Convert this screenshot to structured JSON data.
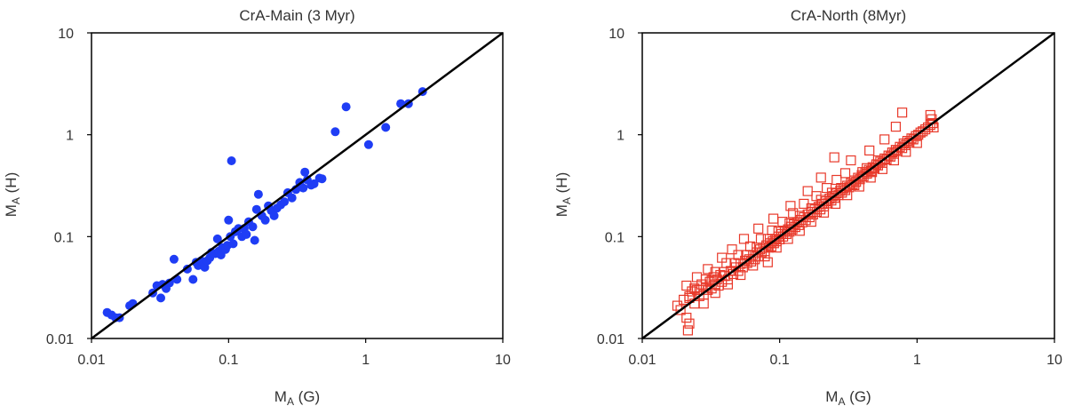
{
  "chart_data": [
    {
      "type": "scatter",
      "title": "CrA-Main (3 Myr)",
      "xlabel": {
        "main": "M",
        "sub": "A",
        "suffix": " (G)"
      },
      "ylabel": {
        "main": "M",
        "sub": "A",
        "suffix": " (H)"
      },
      "xscale": "log",
      "yscale": "log",
      "xlim": [
        0.01,
        10
      ],
      "ylim": [
        0.01,
        10
      ],
      "xticks": [
        0.01,
        0.1,
        1,
        10
      ],
      "xtick_labels": [
        "0.01",
        "0.1",
        "1",
        "10"
      ],
      "yticks": [
        0.01,
        0.1,
        1,
        10
      ],
      "ytick_labels": [
        "0.01",
        "0.1",
        "1",
        "10"
      ],
      "reference_line": "y = x",
      "marker": "filled-circle",
      "color": "#1f3df5",
      "points": [
        [
          0.013,
          0.018
        ],
        [
          0.014,
          0.017
        ],
        [
          0.015,
          0.016
        ],
        [
          0.016,
          0.016
        ],
        [
          0.019,
          0.021
        ],
        [
          0.02,
          0.022
        ],
        [
          0.028,
          0.028
        ],
        [
          0.03,
          0.033
        ],
        [
          0.032,
          0.025
        ],
        [
          0.033,
          0.034
        ],
        [
          0.035,
          0.031
        ],
        [
          0.037,
          0.035
        ],
        [
          0.04,
          0.06
        ],
        [
          0.042,
          0.038
        ],
        [
          0.05,
          0.048
        ],
        [
          0.055,
          0.038
        ],
        [
          0.058,
          0.056
        ],
        [
          0.06,
          0.052
        ],
        [
          0.063,
          0.058
        ],
        [
          0.067,
          0.05
        ],
        [
          0.07,
          0.058
        ],
        [
          0.073,
          0.062
        ],
        [
          0.075,
          0.07
        ],
        [
          0.08,
          0.068
        ],
        [
          0.083,
          0.095
        ],
        [
          0.085,
          0.072
        ],
        [
          0.088,
          0.066
        ],
        [
          0.09,
          0.078
        ],
        [
          0.095,
          0.075
        ],
        [
          0.098,
          0.082
        ],
        [
          0.1,
          0.145
        ],
        [
          0.103,
          0.1
        ],
        [
          0.105,
          0.555
        ],
        [
          0.108,
          0.085
        ],
        [
          0.112,
          0.112
        ],
        [
          0.118,
          0.12
        ],
        [
          0.125,
          0.1
        ],
        [
          0.13,
          0.12
        ],
        [
          0.135,
          0.105
        ],
        [
          0.14,
          0.14
        ],
        [
          0.15,
          0.125
        ],
        [
          0.155,
          0.092
        ],
        [
          0.16,
          0.185
        ],
        [
          0.165,
          0.26
        ],
        [
          0.175,
          0.16
        ],
        [
          0.185,
          0.145
        ],
        [
          0.195,
          0.2
        ],
        [
          0.205,
          0.18
        ],
        [
          0.215,
          0.16
        ],
        [
          0.225,
          0.19
        ],
        [
          0.24,
          0.205
        ],
        [
          0.255,
          0.22
        ],
        [
          0.27,
          0.27
        ],
        [
          0.29,
          0.24
        ],
        [
          0.31,
          0.29
        ],
        [
          0.33,
          0.34
        ],
        [
          0.35,
          0.3
        ],
        [
          0.36,
          0.43
        ],
        [
          0.375,
          0.36
        ],
        [
          0.4,
          0.32
        ],
        [
          0.42,
          0.33
        ],
        [
          0.46,
          0.375
        ],
        [
          0.48,
          0.37
        ],
        [
          0.6,
          1.07
        ],
        [
          0.72,
          1.88
        ],
        [
          1.05,
          0.8
        ],
        [
          1.4,
          1.18
        ],
        [
          1.8,
          2.02
        ],
        [
          2.05,
          2.02
        ],
        [
          2.6,
          2.65
        ]
      ]
    },
    {
      "type": "scatter",
      "title": "CrA-North (8Myr)",
      "xlabel": {
        "main": "M",
        "sub": "A",
        "suffix": " (G)"
      },
      "ylabel": {
        "main": "M",
        "sub": "A",
        "suffix": " (H)"
      },
      "xscale": "log",
      "yscale": "log",
      "xlim": [
        0.01,
        10
      ],
      "ylim": [
        0.01,
        10
      ],
      "xticks": [
        0.01,
        0.1,
        1,
        10
      ],
      "xtick_labels": [
        "0.01",
        "0.1",
        "1",
        "10"
      ],
      "yticks": [
        0.01,
        0.1,
        1,
        10
      ],
      "ytick_labels": [
        "0.01",
        "0.1",
        "1",
        "10"
      ],
      "reference_line": "y = x",
      "marker": "open-square",
      "color": "#e8392a",
      "points": [
        [
          0.018,
          0.021
        ],
        [
          0.019,
          0.019
        ],
        [
          0.02,
          0.024
        ],
        [
          0.021,
          0.016
        ],
        [
          0.0215,
          0.012
        ],
        [
          0.022,
          0.014
        ],
        [
          0.022,
          0.026
        ],
        [
          0.023,
          0.029
        ],
        [
          0.024,
          0.022
        ],
        [
          0.025,
          0.03
        ],
        [
          0.026,
          0.026
        ],
        [
          0.027,
          0.034
        ],
        [
          0.028,
          0.027
        ],
        [
          0.029,
          0.032
        ],
        [
          0.03,
          0.03
        ],
        [
          0.031,
          0.036
        ],
        [
          0.032,
          0.031
        ],
        [
          0.033,
          0.04
        ],
        [
          0.034,
          0.034
        ],
        [
          0.035,
          0.038
        ],
        [
          0.036,
          0.033
        ],
        [
          0.037,
          0.042
        ],
        [
          0.038,
          0.036
        ],
        [
          0.04,
          0.041
        ],
        [
          0.042,
          0.038
        ],
        [
          0.044,
          0.046
        ],
        [
          0.046,
          0.043
        ],
        [
          0.048,
          0.05
        ],
        [
          0.05,
          0.046
        ],
        [
          0.052,
          0.054
        ],
        [
          0.054,
          0.05
        ],
        [
          0.056,
          0.058
        ],
        [
          0.058,
          0.055
        ],
        [
          0.06,
          0.06
        ],
        [
          0.062,
          0.057
        ],
        [
          0.064,
          0.066
        ],
        [
          0.066,
          0.06
        ],
        [
          0.068,
          0.07
        ],
        [
          0.07,
          0.064
        ],
        [
          0.072,
          0.075
        ],
        [
          0.074,
          0.07
        ],
        [
          0.076,
          0.078
        ],
        [
          0.078,
          0.072
        ],
        [
          0.08,
          0.082
        ],
        [
          0.082,
          0.056
        ],
        [
          0.083,
          0.078
        ],
        [
          0.085,
          0.086
        ],
        [
          0.087,
          0.08
        ],
        [
          0.089,
          0.09
        ],
        [
          0.091,
          0.086
        ],
        [
          0.093,
          0.095
        ],
        [
          0.095,
          0.09
        ],
        [
          0.098,
          0.1
        ],
        [
          0.1,
          0.094
        ],
        [
          0.103,
          0.106
        ],
        [
          0.106,
          0.1
        ],
        [
          0.109,
          0.112
        ],
        [
          0.112,
          0.106
        ],
        [
          0.115,
          0.118
        ],
        [
          0.118,
          0.112
        ],
        [
          0.121,
          0.125
        ],
        [
          0.124,
          0.118
        ],
        [
          0.127,
          0.132
        ],
        [
          0.13,
          0.124
        ],
        [
          0.134,
          0.138
        ],
        [
          0.138,
          0.13
        ],
        [
          0.142,
          0.146
        ],
        [
          0.146,
          0.138
        ],
        [
          0.15,
          0.155
        ],
        [
          0.155,
          0.145
        ],
        [
          0.16,
          0.165
        ],
        [
          0.165,
          0.155
        ],
        [
          0.17,
          0.175
        ],
        [
          0.175,
          0.165
        ],
        [
          0.18,
          0.185
        ],
        [
          0.186,
          0.175
        ],
        [
          0.192,
          0.196
        ],
        [
          0.198,
          0.185
        ],
        [
          0.204,
          0.21
        ],
        [
          0.21,
          0.198
        ],
        [
          0.217,
          0.222
        ],
        [
          0.224,
          0.212
        ],
        [
          0.231,
          0.236
        ],
        [
          0.238,
          0.226
        ],
        [
          0.245,
          0.25
        ],
        [
          0.252,
          0.24
        ],
        [
          0.26,
          0.266
        ],
        [
          0.268,
          0.255
        ],
        [
          0.276,
          0.282
        ],
        [
          0.284,
          0.27
        ],
        [
          0.292,
          0.298
        ],
        [
          0.3,
          0.286
        ],
        [
          0.31,
          0.316
        ],
        [
          0.32,
          0.305
        ],
        [
          0.33,
          0.336
        ],
        [
          0.34,
          0.325
        ],
        [
          0.35,
          0.356
        ],
        [
          0.36,
          0.345
        ],
        [
          0.372,
          0.378
        ],
        [
          0.384,
          0.366
        ],
        [
          0.396,
          0.402
        ],
        [
          0.408,
          0.39
        ],
        [
          0.42,
          0.428
        ],
        [
          0.432,
          0.415
        ],
        [
          0.446,
          0.452
        ],
        [
          0.46,
          0.44
        ],
        [
          0.475,
          0.48
        ],
        [
          0.49,
          0.47
        ],
        [
          0.505,
          0.512
        ],
        [
          0.52,
          0.5
        ],
        [
          0.54,
          0.545
        ],
        [
          0.56,
          0.53
        ],
        [
          0.58,
          0.585
        ],
        [
          0.6,
          0.57
        ],
        [
          0.62,
          0.625
        ],
        [
          0.64,
          0.61
        ],
        [
          0.66,
          0.67
        ],
        [
          0.68,
          0.65
        ],
        [
          0.7,
          0.71
        ],
        [
          0.72,
          0.69
        ],
        [
          0.75,
          0.76
        ],
        [
          0.78,
          0.74
        ],
        [
          0.8,
          0.82
        ],
        [
          0.82,
          0.79
        ],
        [
          0.85,
          0.87
        ],
        [
          0.88,
          0.84
        ],
        [
          0.91,
          0.92
        ],
        [
          0.94,
          0.9
        ],
        [
          0.98,
          0.97
        ],
        [
          1.02,
          1.0
        ],
        [
          1.06,
          1.05
        ],
        [
          1.1,
          1.08
        ],
        [
          1.15,
          1.13
        ],
        [
          1.2,
          1.18
        ],
        [
          1.25,
          1.25
        ],
        [
          1.3,
          1.3
        ],
        [
          1.32,
          1.18
        ],
        [
          1.28,
          1.42
        ],
        [
          1.25,
          1.56
        ],
        [
          0.78,
          1.65
        ],
        [
          0.7,
          1.2
        ],
        [
          0.58,
          0.9
        ],
        [
          0.45,
          0.7
        ],
        [
          0.33,
          0.56
        ],
        [
          0.25,
          0.6
        ],
        [
          0.2,
          0.38
        ],
        [
          0.16,
          0.28
        ],
        [
          0.12,
          0.2
        ],
        [
          0.09,
          0.15
        ],
        [
          0.07,
          0.12
        ],
        [
          0.055,
          0.095
        ],
        [
          0.045,
          0.075
        ],
        [
          0.038,
          0.062
        ],
        [
          0.03,
          0.048
        ],
        [
          0.025,
          0.04
        ],
        [
          0.021,
          0.033
        ],
        [
          0.028,
          0.022
        ],
        [
          0.034,
          0.028
        ],
        [
          0.042,
          0.034
        ],
        [
          0.052,
          0.042
        ],
        [
          0.064,
          0.052
        ],
        [
          0.078,
          0.064
        ],
        [
          0.095,
          0.078
        ],
        [
          0.115,
          0.095
        ],
        [
          0.14,
          0.114
        ],
        [
          0.17,
          0.14
        ],
        [
          0.21,
          0.172
        ],
        [
          0.255,
          0.21
        ],
        [
          0.31,
          0.255
        ],
        [
          0.38,
          0.31
        ],
        [
          0.46,
          0.38
        ],
        [
          0.56,
          0.46
        ],
        [
          0.68,
          0.56
        ],
        [
          0.83,
          0.68
        ],
        [
          1.0,
          0.83
        ],
        [
          0.3,
          0.42
        ],
        [
          0.26,
          0.36
        ],
        [
          0.22,
          0.3
        ],
        [
          0.185,
          0.25
        ],
        [
          0.15,
          0.21
        ],
        [
          0.125,
          0.17
        ],
        [
          0.105,
          0.14
        ],
        [
          0.088,
          0.115
        ],
        [
          0.073,
          0.095
        ],
        [
          0.061,
          0.08
        ],
        [
          0.05,
          0.066
        ],
        [
          0.041,
          0.055
        ],
        [
          0.034,
          0.045
        ],
        [
          0.029,
          0.038
        ],
        [
          0.024,
          0.031
        ],
        [
          0.4,
          0.43
        ],
        [
          0.43,
          0.47
        ],
        [
          0.47,
          0.43
        ],
        [
          0.52,
          0.56
        ],
        [
          0.35,
          0.32
        ],
        [
          0.28,
          0.3
        ],
        [
          0.24,
          0.27
        ],
        [
          0.2,
          0.23
        ],
        [
          0.17,
          0.19
        ],
        [
          0.14,
          0.16
        ],
        [
          0.118,
          0.135
        ],
        [
          0.098,
          0.112
        ],
        [
          0.082,
          0.095
        ],
        [
          0.068,
          0.078
        ],
        [
          0.057,
          0.066
        ],
        [
          0.047,
          0.055
        ],
        [
          0.039,
          0.045
        ],
        [
          0.032,
          0.037
        ],
        [
          0.026,
          0.03
        ],
        [
          0.022,
          0.025
        ]
      ]
    }
  ]
}
